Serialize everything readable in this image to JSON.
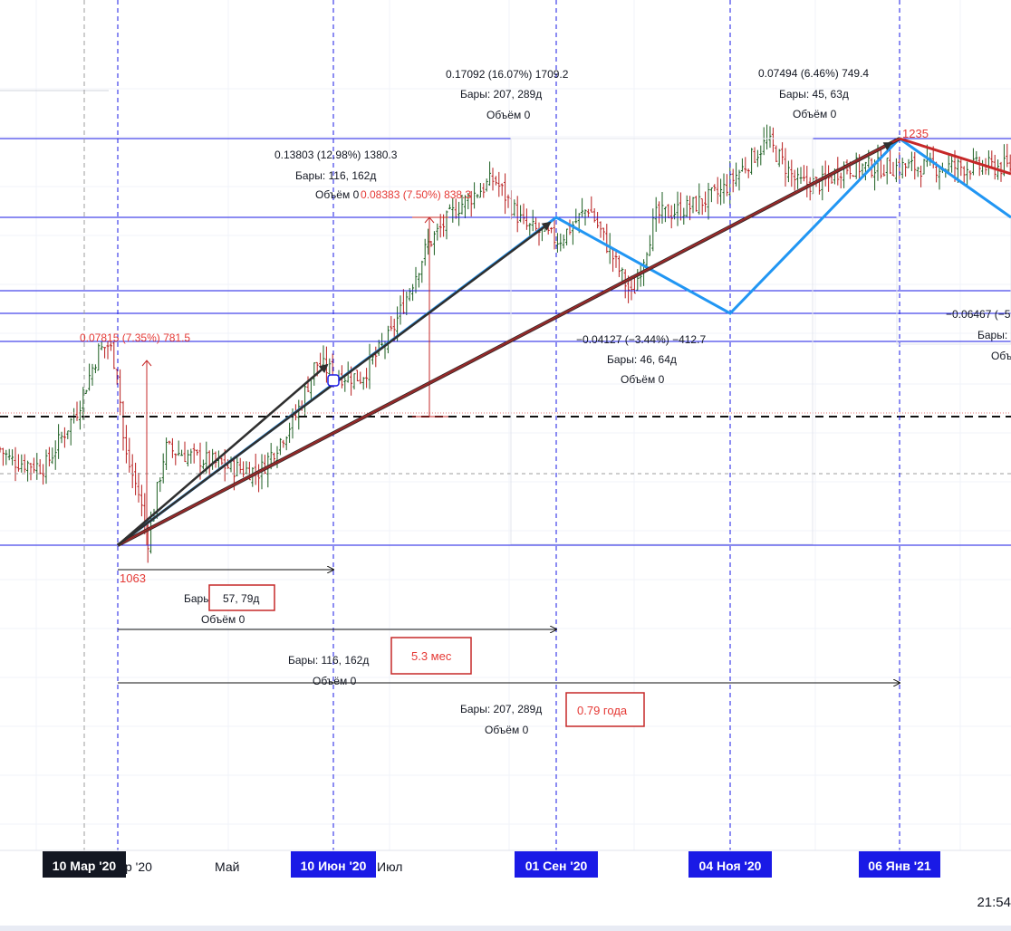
{
  "chart_data": {
    "type": "candlestick",
    "x_axis": {
      "tick_labels": [
        "Май",
        "Июл"
      ],
      "highlighted_labels": [
        "10 Мар '20",
        "10 Июн '20",
        "01 Сен '20",
        "04 Ноя '20",
        "06 Янв '21"
      ],
      "partial_label": "р '20"
    },
    "price_series": {
      "dates": [
        "2020-01-02",
        "2020-01-20",
        "2020-02-05",
        "2020-02-20",
        "2020-03-01",
        "2020-03-06",
        "2020-03-10",
        "2020-03-13",
        "2020-03-20",
        "2020-03-24",
        "2020-04-01",
        "2020-04-15",
        "2020-05-01",
        "2020-05-15",
        "2020-06-01",
        "2020-06-10",
        "2020-06-20",
        "2020-07-01",
        "2020-07-15",
        "2020-08-01",
        "2020-08-15",
        "2020-09-01",
        "2020-09-15",
        "2020-10-01",
        "2020-10-15",
        "2020-11-04",
        "2020-11-15",
        "2020-12-01",
        "2020-12-15",
        "2021-01-06",
        "2021-01-20",
        "2021-02-01",
        "2021-02-10"
      ],
      "close": [
        1117,
        1099,
        1096,
        1120,
        1145,
        1148,
        1136,
        1103,
        1084,
        1065,
        1104,
        1100,
        1096,
        1094,
        1118,
        1140,
        1135,
        1134,
        1152,
        1190,
        1206,
        1218,
        1198,
        1192,
        1206,
        1168,
        1202,
        1206,
        1212,
        1234,
        1216,
        1216,
        1223
      ]
    },
    "annotations": {
      "low_label": "1063",
      "high_label": "1235",
      "measure_1": {
        "line1": "0.07815 (7.35%) 781.5"
      },
      "measure_2": {
        "line1": "0.13803 (12.98%) 1380.3",
        "line2": "Бары: 116, 162д",
        "line3": "Объём 0"
      },
      "measure_3": {
        "line1": "0.08383 (7.50%) 838.3"
      },
      "measure_4": {
        "line1": "0.17092 (16.07%) 1709.2",
        "line2": "Бары: 207, 289д",
        "line3": "Объём 0"
      },
      "measure_5": {
        "line1": "0.07494 (6.46%) 749.4",
        "line2": "Бары: 45, 63д",
        "line3": "Объём 0"
      },
      "measure_6": {
        "line1": "−0.04127 (−3.44%) −412.7",
        "line2": "Бары: 46, 64д",
        "line3": "Объём 0"
      },
      "measure_7": {
        "line1": "−0.06467 (−5",
        "line2": "Бары:",
        "line3": "Объ"
      },
      "range_1": {
        "line1": "Бары: 57, 79д",
        "line2": "Объём 0"
      },
      "range_2": {
        "line1": "Бары: 116, 162д",
        "line2": "Объём 0"
      },
      "range_3": {
        "line1": "Бары: 207, 289д",
        "line2": "Объём 0"
      },
      "box_1": "57, 79д",
      "box_2": "5.3 мес",
      "box_3": "0.79 года"
    },
    "colors": {
      "bull": "#1b5e20",
      "bear": "#b71c1c",
      "blue_level": "#1a1ae6",
      "zigzag": "#2196f3",
      "trend": "#c62828",
      "arrow": "#2f2f2f",
      "measure_red": "#e53935"
    }
  },
  "status": {
    "clock": "21:54"
  }
}
